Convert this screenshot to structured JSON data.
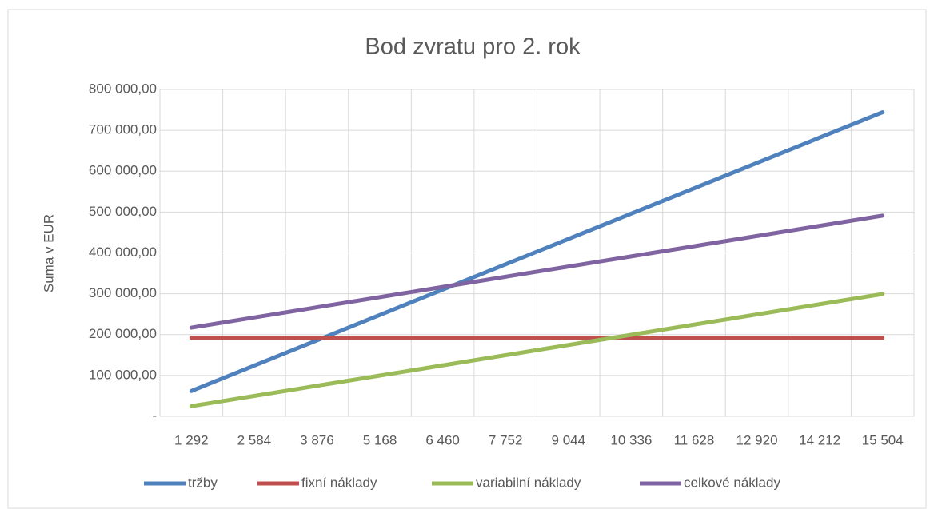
{
  "chart_data": {
    "type": "line",
    "title": "Bod zvratu pro 2. rok",
    "y_label": "Suma v EUR",
    "categories": [
      "1 292",
      "2 584",
      "3 876",
      "5 168",
      "6 460",
      "7 752",
      "9 044",
      "10 336",
      "11 628",
      "12 920",
      "14 212",
      "15 504"
    ],
    "series": [
      {
        "name": "tržby",
        "color": "#4f81bd",
        "values": [
          62016,
          124032,
          186048,
          248064,
          310080,
          372096,
          434112,
          496128,
          558144,
          620160,
          682176,
          744192
        ]
      },
      {
        "name": "fixní náklady",
        "color": "#c0504d",
        "values": [
          192000,
          192000,
          192000,
          192000,
          192000,
          192000,
          192000,
          192000,
          192000,
          192000,
          192000,
          192000
        ]
      },
      {
        "name": "variabilní náklady",
        "color": "#9bbb59",
        "values": [
          24936,
          49872,
          74808,
          99744,
          124680,
          149616,
          174552,
          199488,
          224424,
          249360,
          274296,
          299232
        ]
      },
      {
        "name": "celkové náklady",
        "color": "#8064a2",
        "values": [
          216936,
          241872,
          266808,
          291744,
          316680,
          341616,
          366552,
          391488,
          416424,
          441360,
          466296,
          491232
        ]
      }
    ],
    "ylim": [
      0,
      800000
    ],
    "yticks": [
      {
        "value": 0,
        "label": "-"
      },
      {
        "value": 100000,
        "label": "100 000,00"
      },
      {
        "value": 200000,
        "label": "200 000,00"
      },
      {
        "value": 300000,
        "label": "300 000,00"
      },
      {
        "value": 400000,
        "label": "400 000,00"
      },
      {
        "value": 500000,
        "label": "500 000,00"
      },
      {
        "value": 600000,
        "label": "600 000,00"
      },
      {
        "value": 700000,
        "label": "700 000,00"
      },
      {
        "value": 800000,
        "label": "800 000,00"
      }
    ],
    "grid": true,
    "legend": "bottom"
  }
}
